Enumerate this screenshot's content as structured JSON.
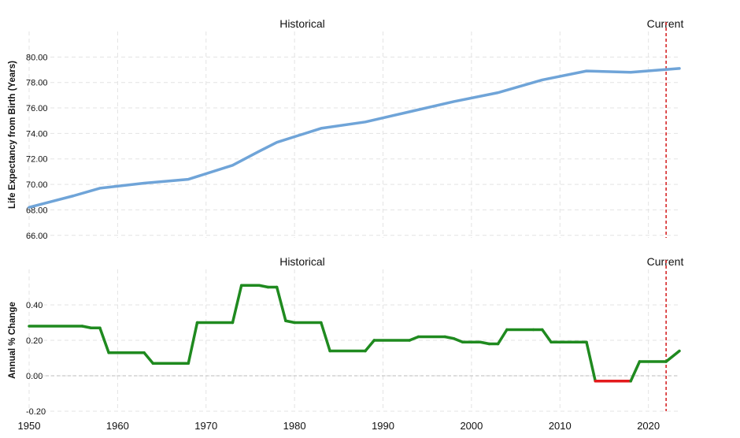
{
  "chart_data": [
    {
      "type": "line",
      "title": "",
      "period_labels": [
        "Historical",
        "Current"
      ],
      "ylabel": "Life Expectancy from Birth (Years)",
      "xlim": [
        1950,
        2023.5
      ],
      "ylim": [
        65.8,
        82.0
      ],
      "y_ticks": [
        66,
        68,
        70,
        72,
        74,
        76,
        78,
        80
      ],
      "y_tick_labels": [
        "66.00",
        "68.00",
        "70.00",
        "72.00",
        "74.00",
        "76.00",
        "78.00",
        "80.00"
      ],
      "current_marker_x": 2022,
      "color": "#6fa4d8",
      "marker_color": "#d62728",
      "series": [
        {
          "name": "Life Expectancy",
          "x": [
            1950,
            1955,
            1958,
            1963,
            1968,
            1973,
            1976,
            1978,
            1983,
            1988,
            1993,
            1998,
            2003,
            2008,
            2013,
            2018,
            2023.5
          ],
          "values": [
            68.2,
            69.1,
            69.7,
            70.1,
            70.4,
            71.5,
            72.6,
            73.3,
            74.4,
            74.9,
            75.7,
            76.5,
            77.2,
            78.2,
            78.9,
            78.8,
            79.1
          ]
        }
      ]
    },
    {
      "type": "line",
      "title": "",
      "period_labels": [
        "Historical",
        "Current"
      ],
      "ylabel": "Annual % Change",
      "xlim": [
        1950,
        2023.5
      ],
      "ylim": [
        -0.2,
        0.6
      ],
      "y_ticks": [
        -0.2,
        0.0,
        0.2,
        0.4
      ],
      "y_tick_labels": [
        "-0.20",
        "0.00",
        "0.20",
        "0.40"
      ],
      "x_ticks": [
        1950,
        1960,
        1970,
        1980,
        1990,
        2000,
        2010,
        2020
      ],
      "current_marker_x": 2022,
      "positive_color": "#1f8a1f",
      "negative_color": "#e31a1c",
      "marker_color": "#d62728",
      "series": [
        {
          "name": "Annual % Change",
          "x": [
            1950,
            1956,
            1957,
            1958,
            1959,
            1963,
            1964,
            1968,
            1969,
            1973,
            1974,
            1976,
            1977,
            1978,
            1979,
            1980,
            1983,
            1984,
            1988,
            1989,
            1993,
            1994,
            1997,
            1998,
            1999,
            2001,
            2002,
            2003,
            2004,
            2007,
            2008,
            2009,
            2013,
            2014,
            2018,
            2019,
            2022,
            2023.5
          ],
          "values": [
            0.28,
            0.28,
            0.27,
            0.27,
            0.13,
            0.13,
            0.07,
            0.07,
            0.3,
            0.3,
            0.51,
            0.51,
            0.5,
            0.5,
            0.31,
            0.3,
            0.3,
            0.14,
            0.14,
            0.2,
            0.2,
            0.22,
            0.22,
            0.21,
            0.19,
            0.19,
            0.18,
            0.18,
            0.26,
            0.26,
            0.26,
            0.19,
            0.19,
            -0.03,
            -0.03,
            0.08,
            0.08,
            0.14
          ]
        }
      ]
    }
  ]
}
